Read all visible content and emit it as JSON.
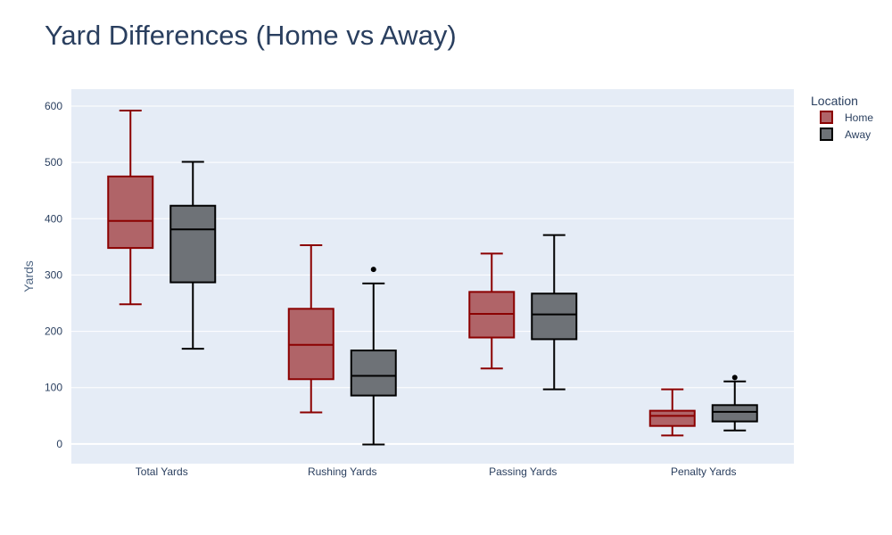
{
  "chart_data": {
    "type": "box",
    "title": "Yard Differences (Home vs Away)",
    "xlabel": "",
    "ylabel": "Yards",
    "ylim": [
      -35,
      630
    ],
    "yticks": [
      0,
      100,
      200,
      300,
      400,
      500,
      600
    ],
    "grid": true,
    "legend": {
      "title": "Location",
      "placement": "top-right"
    },
    "categories": [
      "Total Yards",
      "Rushing Yards",
      "Passing Yards",
      "Penalty Yards"
    ],
    "series": [
      {
        "name": "Home",
        "line_color": "#8b0000",
        "fill_color": "#b06468",
        "boxes": [
          {
            "min": 248,
            "q1": 348,
            "median": 396,
            "q3": 475,
            "max": 592,
            "outliers": []
          },
          {
            "min": 56,
            "q1": 115,
            "median": 176,
            "q3": 240,
            "max": 353,
            "outliers": []
          },
          {
            "min": 134,
            "q1": 189,
            "median": 231,
            "q3": 270,
            "max": 338,
            "outliers": []
          },
          {
            "min": 15,
            "q1": 32,
            "median": 50,
            "q3": 59,
            "max": 97,
            "outliers": []
          }
        ]
      },
      {
        "name": "Away",
        "line_color": "#000000",
        "fill_color": "#6e7277",
        "boxes": [
          {
            "min": 169,
            "q1": 287,
            "median": 381,
            "q3": 423,
            "max": 501,
            "outliers": []
          },
          {
            "min": -1,
            "q1": 86,
            "median": 121,
            "q3": 166,
            "max": 285,
            "outliers": [
              310
            ]
          },
          {
            "min": 97,
            "q1": 186,
            "median": 230,
            "q3": 267,
            "max": 371,
            "outliers": []
          },
          {
            "min": 24,
            "q1": 40,
            "median": 57,
            "q3": 69,
            "max": 111,
            "outliers": [
              118
            ]
          }
        ]
      }
    ]
  }
}
